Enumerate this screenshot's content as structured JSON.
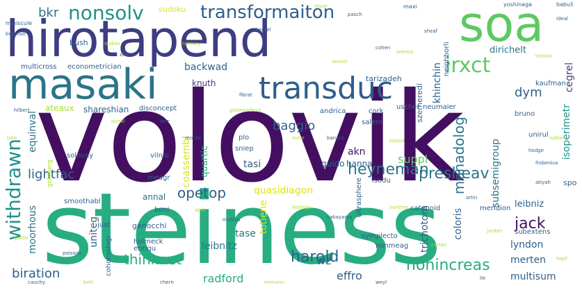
{
  "words": {
    "volovik": "volovik",
    "steiness": "steiness",
    "hirotapend": "hirotapend",
    "masaki": "masaki",
    "soa": "soa",
    "transformaiton": "transformaiton",
    "transduc": "transduc",
    "nonsolv": "nonsolv",
    "withdrawn": "withdrawn",
    "irxct": "irxct",
    "presheav": "presheav",
    "heyneman": "heyneman",
    "opetop": "opetop",
    "lightfac": "lightfac",
    "monadolog": "monadolog",
    "thinknet": "thinknet",
    "harold": "harold",
    "nonincreas": "nonincreas",
    "biration": "biration",
    "jack": "jack",
    "radford": "radford",
    "isoperimetr": "isoperimetr",
    "quasidiagon": "quasidiagon",
    "baggio": "baggio",
    "coassembl": "coassembl",
    "backwad": "backwad",
    "knuth": "knuth",
    "dym": "dym",
    "bkr": "bkr",
    "dirichelt": "dirichelt",
    "khinchin": "khinchin",
    "cegrel": "cegrel",
    "ateaux": "ateaux",
    "shareshian": "shareshian",
    "akn": "akn",
    "hanna": "hanna",
    "suppl": "suppl",
    "equinval": "equinval",
    "moorhous": "moorhous",
    "uniteg": "uniteg",
    "lyndon": "lyndon",
    "merten": "merten",
    "multisum": "multisum",
    "leibniz": "leibniz",
    "tasi": "tasi",
    "guido": "guido",
    "annal": "annal",
    "leibnitz": "leibnitz",
    "tase": "tase",
    "totiene": "totiene",
    "effro": "effro",
    "wz": "wz",
    "coloris": "coloris",
    "trichotom": "trichotom",
    "quartic": "quartic",
    "sudoku": "sudoku",
    "multicross": "multicross",
    "econometrician": "econometrician",
    "bush": "bush",
    "tarizadeh": "tarizadeh",
    "szemeredi": "szemeredi",
    "neighborli": "neighborli",
    "subsemigroup": "subsemigroup",
    "kaufman": "kaufman",
    "bruno": "bruno",
    "ultrasphere": "ultrasphere",
    "isodu": "isodu",
    "meagr": "meagr",
    "vilniu": "vilniu",
    "solovay": "solovay",
    "boni": "boni",
    "genocchi": "genocchi",
    "just": "just",
    "holmeck": "holmeck",
    "enriqu": "enriqu",
    "smoothabl": "smoothabl",
    "andrica": "andrica",
    "salem": "salem",
    "cork": "cork",
    "uscher": "uscher",
    "neumaier": "neumaier",
    "disconcept": "disconcept",
    "catenoid": "catenoid",
    "meridion": "meridion",
    "subextens": "subextens",
    "symplecto": "symplecto",
    "nonmeag": "nonmeag",
    "cohomologi": "cohomologi",
    "sniep": "sniep",
    "unirul": "unirul",
    "plo": "plo",
    "spo": "spo",
    "yoshinaga": "yoshinaga",
    "miniscule": "miniscule",
    "babuš": "babuš",
    "maxi": "maxi",
    "goldberg": "goldberg",
    "bernoull": "bernoull",
    "stokes": "stokes",
    "zorn": "zorn",
    "ramsey": "ramsey",
    "kernel": "kernel",
    "fibrat": "fibrat",
    "tensor": "tensor",
    "cohen": "cohen",
    "lemma": "lemma",
    "sheaf": "sheaf",
    "torsion": "torsion",
    "hilbert": "hilbert",
    "dunkl": "dunkl",
    "morita": "morita",
    "euler": "euler",
    "banach": "banach",
    "koszul": "koszul",
    "frobenius": "frobenius",
    "galois": "galois",
    "poisson": "poisson",
    "abel": "abel",
    "mobius": "mobius",
    "lebesgu": "lebesgu",
    "nakayama": "nakayama",
    "noether": "noether",
    "artin": "artin",
    "jordan": "jordan",
    "cauchy": "cauchy",
    "riemann": "riemann",
    "weyl": "weyl",
    "cartan": "cartan",
    "lie": "lie",
    "hopf": "hopf",
    "ideal": "ideal",
    "mizar": "mizar",
    "pasch": "pasch",
    "tate": "tate",
    "serr": "serr",
    "grothendieck": "grothendieck",
    "hodge": "hodge",
    "kahler": "kahler",
    "chern": "chern",
    "bott": "bott",
    "atiyah": "atiyah"
  }
}
